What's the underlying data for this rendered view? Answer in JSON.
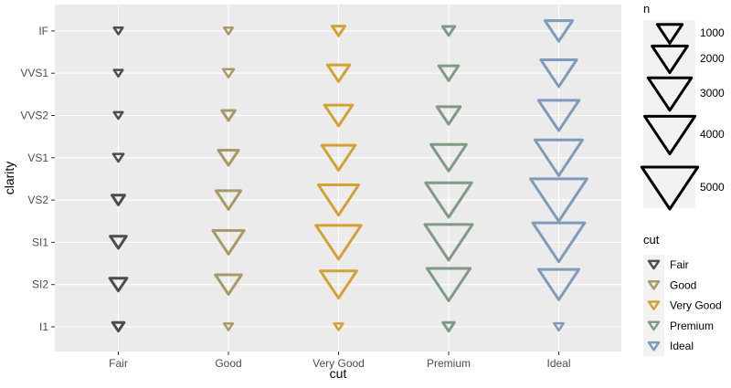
{
  "chart_data": {
    "type": "scatter",
    "xlabel": "cut",
    "ylabel": "clarity",
    "x_categories": [
      "Fair",
      "Good",
      "Very Good",
      "Premium",
      "Ideal"
    ],
    "y_categories": [
      "I1",
      "SI2",
      "SI1",
      "VS2",
      "VS1",
      "VVS2",
      "VVS1",
      "IF"
    ],
    "grid": true,
    "size_legend": {
      "title": "n",
      "breaks": [
        1000,
        2000,
        3000,
        4000,
        5000
      ]
    },
    "color_legend": {
      "title": "cut",
      "labels": [
        "Fair",
        "Good",
        "Very Good",
        "Premium",
        "Ideal"
      ]
    },
    "colors": {
      "Fair": "#4d4d4d",
      "Good": "#a89968",
      "Very Good": "#d4a233",
      "Premium": "#7f9a85",
      "Ideal": "#7f9bbb"
    },
    "series": [
      {
        "name": "Fair",
        "values": [
          210,
          466,
          408,
          261,
          170,
          69,
          17,
          9
        ]
      },
      {
        "name": "Good",
        "values": [
          96,
          1081,
          1560,
          978,
          648,
          286,
          186,
          71
        ]
      },
      {
        "name": "Very Good",
        "values": [
          84,
          2100,
          3240,
          2591,
          1775,
          1235,
          789,
          268
        ]
      },
      {
        "name": "Premium",
        "values": [
          205,
          2949,
          3575,
          3357,
          1989,
          870,
          616,
          230
        ]
      },
      {
        "name": "Ideal",
        "values": [
          146,
          2598,
          4282,
          5071,
          3589,
          2606,
          2047,
          1212
        ]
      }
    ]
  }
}
